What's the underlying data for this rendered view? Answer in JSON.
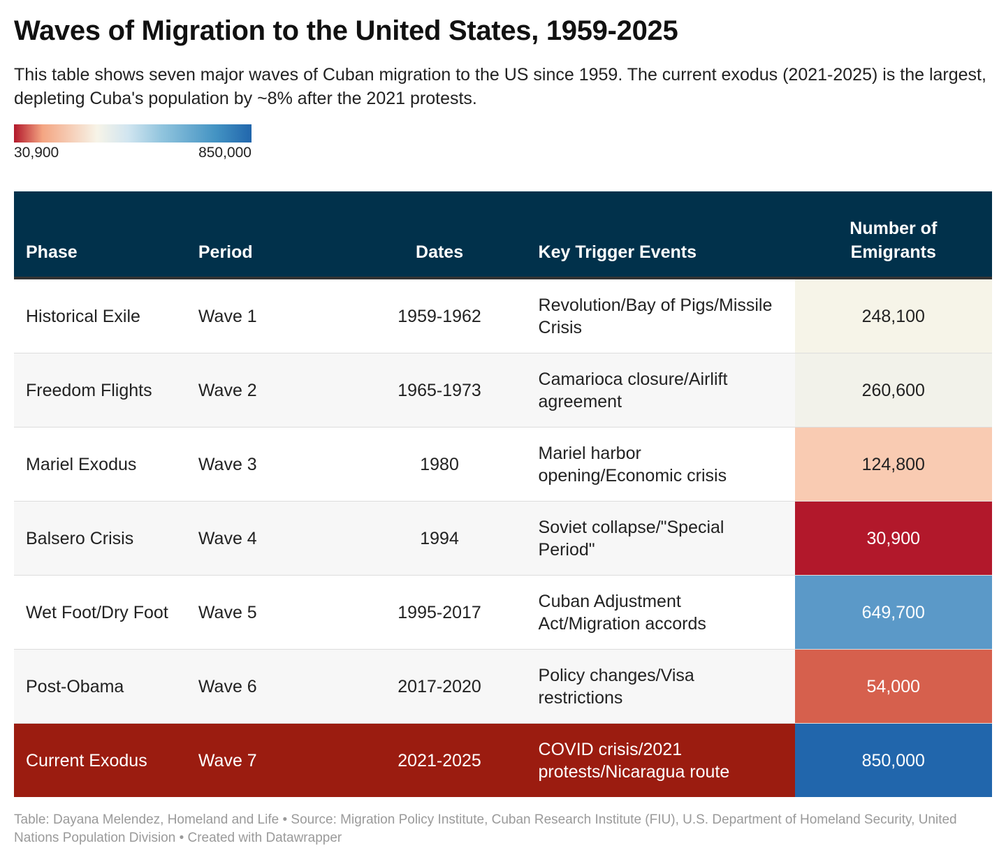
{
  "title": "Waves of Migration to the United States, 1959-2025",
  "subtitle": "This table shows seven major waves of Cuban migration to the US since 1959. The current exodus (2021-2025) is the largest, depleting Cuba's population by ~8% after the 2021 protests.",
  "legend": {
    "min_label": "30,900",
    "max_label": "850,000",
    "colors": [
      "#b2182b",
      "#f7f4e8",
      "#2166ac"
    ]
  },
  "footer": "Table: Dayana Melendez, Homeland and Life • Source: Migration Policy Institute, Cuban Research Institute (FIU), U.S. Department of Homeland Security, United Nations Population Division • Created with Datawrapper",
  "chart_data": {
    "type": "table",
    "columns": [
      "Phase",
      "Period",
      "Dates",
      "Key Trigger Events",
      "Number of Emigrants"
    ],
    "rows": [
      {
        "phase": "Historical Exile",
        "period": "Wave 1",
        "dates": "1959-1962",
        "events": "Revolution/Bay of Pigs/Missile Crisis",
        "emigrants": "248,100",
        "value": 248100,
        "color": "#f6f4e8",
        "text_color": "#222"
      },
      {
        "phase": "Freedom Flights",
        "period": "Wave 2",
        "dates": "1965-1973",
        "events": "Camarioca closure/Airlift agreement",
        "emigrants": "260,600",
        "value": 260600,
        "color": "#f2f2ea",
        "text_color": "#222"
      },
      {
        "phase": "Mariel Exodus",
        "period": "Wave 3",
        "dates": "1980",
        "events": "Mariel harbor opening/Economic crisis",
        "emigrants": "124,800",
        "value": 124800,
        "color": "#f9cbb2",
        "text_color": "#222"
      },
      {
        "phase": "Balsero Crisis",
        "period": "Wave 4",
        "dates": "1994",
        "events": "Soviet collapse/\"Special Period\"",
        "emigrants": "30,900",
        "value": 30900,
        "color": "#b2182b",
        "text_color": "#fff"
      },
      {
        "phase": "Wet Foot/Dry Foot",
        "period": "Wave 5",
        "dates": "1995-2017",
        "events": "Cuban Adjustment Act/Migration accords",
        "emigrants": "649,700",
        "value": 649700,
        "color": "#5b99c8",
        "text_color": "#fff"
      },
      {
        "phase": "Post-Obama",
        "period": "Wave 6",
        "dates": "2017-2020",
        "events": "Policy changes/Visa restrictions",
        "emigrants": "54,000",
        "value": 54000,
        "color": "#d6604d",
        "text_color": "#fff"
      },
      {
        "phase": "Current Exodus",
        "period": "Wave 7",
        "dates": "2021-2025",
        "events": "COVID crisis/2021 protests/Nicaragua route",
        "emigrants": "850,000",
        "value": 850000,
        "color": "#2166ac",
        "text_color": "#fff",
        "highlight_color": "#9b1c10"
      }
    ]
  }
}
